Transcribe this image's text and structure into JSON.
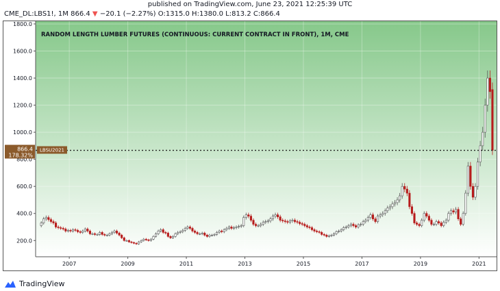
{
  "header": {
    "published": "published on TradingView.com, June 23, 2021 12:25:39 UTC",
    "symbol": "CME_DL:LBS1!, 1M",
    "last": "866.4",
    "change": "−20.1 (−2.27%)",
    "open_label": "O:",
    "open": "1315.0",
    "high_label": "H:",
    "high": "1380.0",
    "low_label": "L:",
    "low": "813.2",
    "close_label": "C:",
    "close": "866.4"
  },
  "footer": {
    "brand": "TradingView"
  },
  "colors": {
    "up": "#555555",
    "down": "#b71c1c",
    "bg_top": "#86c88a",
    "bg_bottom": "#ffffff",
    "label_bg": "#8b5a2b",
    "dotted_line": "#222222"
  },
  "chart_data": {
    "type": "candlestick",
    "title": "RANDOM LENGTH LUMBER FUTURES (CONTINUOUS: CURRENT CONTRACT IN FRONT), 1M, CME",
    "ylim": [
      80,
      1820
    ],
    "y_ticks": [
      200,
      400,
      600,
      800,
      1000,
      1200,
      1400,
      1600,
      1800
    ],
    "y_tick_labels": [
      "200.0",
      "400.0",
      "600.0",
      "800.0",
      "1000.0",
      "1200.0",
      "1400.0",
      "1600.0",
      "1800.0"
    ],
    "xlim": [
      2005.85,
      2021.6
    ],
    "x_ticks": [
      2007,
      2009,
      2011,
      2013,
      2015,
      2017,
      2019,
      2021
    ],
    "x_tick_labels": [
      "2007",
      "2009",
      "2011",
      "2013",
      "2015",
      "2017",
      "2019",
      "2021"
    ],
    "last_price": 866.4,
    "last_price_label": "866.4",
    "last_change_pct_label": "178.32%",
    "symbol_tag": "LBSU2021",
    "months": [
      "2006-01",
      "2006-02",
      "2006-03",
      "2006-04",
      "2006-05",
      "2006-06",
      "2006-07",
      "2006-08",
      "2006-09",
      "2006-10",
      "2006-11",
      "2006-12",
      "2007-01",
      "2007-02",
      "2007-03",
      "2007-04",
      "2007-05",
      "2007-06",
      "2007-07",
      "2007-08",
      "2007-09",
      "2007-10",
      "2007-11",
      "2007-12",
      "2008-01",
      "2008-02",
      "2008-03",
      "2008-04",
      "2008-05",
      "2008-06",
      "2008-07",
      "2008-08",
      "2008-09",
      "2008-10",
      "2008-11",
      "2008-12",
      "2009-01",
      "2009-02",
      "2009-03",
      "2009-04",
      "2009-05",
      "2009-06",
      "2009-07",
      "2009-08",
      "2009-09",
      "2009-10",
      "2009-11",
      "2009-12",
      "2010-01",
      "2010-02",
      "2010-03",
      "2010-04",
      "2010-05",
      "2010-06",
      "2010-07",
      "2010-08",
      "2010-09",
      "2010-10",
      "2010-11",
      "2010-12",
      "2011-01",
      "2011-02",
      "2011-03",
      "2011-04",
      "2011-05",
      "2011-06",
      "2011-07",
      "2011-08",
      "2011-09",
      "2011-10",
      "2011-11",
      "2011-12",
      "2012-01",
      "2012-02",
      "2012-03",
      "2012-04",
      "2012-05",
      "2012-06",
      "2012-07",
      "2012-08",
      "2012-09",
      "2012-10",
      "2012-11",
      "2012-12",
      "2013-01",
      "2013-02",
      "2013-03",
      "2013-04",
      "2013-05",
      "2013-06",
      "2013-07",
      "2013-08",
      "2013-09",
      "2013-10",
      "2013-11",
      "2013-12",
      "2014-01",
      "2014-02",
      "2014-03",
      "2014-04",
      "2014-05",
      "2014-06",
      "2014-07",
      "2014-08",
      "2014-09",
      "2014-10",
      "2014-11",
      "2014-12",
      "2015-01",
      "2015-02",
      "2015-03",
      "2015-04",
      "2015-05",
      "2015-06",
      "2015-07",
      "2015-08",
      "2015-09",
      "2015-10",
      "2015-11",
      "2015-12",
      "2016-01",
      "2016-02",
      "2016-03",
      "2016-04",
      "2016-05",
      "2016-06",
      "2016-07",
      "2016-08",
      "2016-09",
      "2016-10",
      "2016-11",
      "2016-12",
      "2017-01",
      "2017-02",
      "2017-03",
      "2017-04",
      "2017-05",
      "2017-06",
      "2017-07",
      "2017-08",
      "2017-09",
      "2017-10",
      "2017-11",
      "2017-12",
      "2018-01",
      "2018-02",
      "2018-03",
      "2018-04",
      "2018-05",
      "2018-06",
      "2018-07",
      "2018-08",
      "2018-09",
      "2018-10",
      "2018-11",
      "2018-12",
      "2019-01",
      "2019-02",
      "2019-03",
      "2019-04",
      "2019-05",
      "2019-06",
      "2019-07",
      "2019-08",
      "2019-09",
      "2019-10",
      "2019-11",
      "2019-12",
      "2020-01",
      "2020-02",
      "2020-03",
      "2020-04",
      "2020-05",
      "2020-06",
      "2020-07",
      "2020-08",
      "2020-09",
      "2020-10",
      "2020-11",
      "2020-12",
      "2021-01",
      "2021-02",
      "2021-03",
      "2021-04",
      "2021-05",
      "2021-06"
    ],
    "close": [
      330,
      360,
      370,
      355,
      340,
      330,
      300,
      295,
      290,
      285,
      270,
      275,
      270,
      280,
      275,
      265,
      260,
      270,
      285,
      270,
      250,
      250,
      245,
      245,
      260,
      245,
      240,
      240,
      250,
      260,
      270,
      255,
      240,
      220,
      200,
      200,
      190,
      185,
      180,
      175,
      190,
      200,
      210,
      205,
      200,
      210,
      230,
      250,
      270,
      280,
      260,
      255,
      230,
      220,
      230,
      250,
      260,
      265,
      275,
      290,
      300,
      290,
      270,
      260,
      250,
      250,
      255,
      240,
      230,
      240,
      240,
      245,
      260,
      270,
      265,
      280,
      290,
      300,
      290,
      295,
      300,
      305,
      310,
      370,
      390,
      380,
      350,
      320,
      310,
      310,
      320,
      335,
      340,
      345,
      360,
      380,
      390,
      375,
      350,
      345,
      340,
      335,
      345,
      350,
      340,
      335,
      325,
      320,
      310,
      300,
      295,
      280,
      270,
      265,
      260,
      245,
      240,
      230,
      235,
      240,
      250,
      265,
      270,
      280,
      295,
      300,
      310,
      320,
      310,
      300,
      315,
      320,
      340,
      350,
      370,
      390,
      360,
      340,
      380,
      390,
      400,
      420,
      440,
      450,
      470,
      480,
      500,
      530,
      600,
      580,
      550,
      450,
      400,
      330,
      320,
      310,
      350,
      400,
      380,
      350,
      320,
      320,
      340,
      330,
      310,
      335,
      350,
      400,
      420,
      410,
      430,
      360,
      320,
      400,
      550,
      750,
      600,
      520,
      600,
      780,
      900,
      1000,
      1200,
      1400,
      1300,
      866.4
    ],
    "open": [
      310,
      330,
      360,
      370,
      355,
      340,
      330,
      300,
      295,
      290,
      285,
      270,
      275,
      270,
      280,
      275,
      265,
      260,
      270,
      285,
      270,
      250,
      250,
      245,
      245,
      260,
      245,
      240,
      240,
      250,
      260,
      270,
      255,
      240,
      220,
      200,
      200,
      190,
      185,
      180,
      175,
      190,
      200,
      210,
      205,
      200,
      210,
      230,
      250,
      270,
      280,
      260,
      255,
      230,
      220,
      230,
      250,
      260,
      265,
      275,
      290,
      300,
      290,
      270,
      260,
      250,
      250,
      255,
      240,
      230,
      240,
      240,
      245,
      260,
      270,
      265,
      280,
      290,
      300,
      290,
      295,
      300,
      305,
      310,
      370,
      390,
      380,
      350,
      320,
      310,
      310,
      320,
      335,
      340,
      345,
      360,
      380,
      390,
      375,
      350,
      345,
      340,
      335,
      345,
      350,
      340,
      335,
      325,
      320,
      310,
      300,
      295,
      280,
      270,
      265,
      260,
      245,
      240,
      230,
      235,
      240,
      250,
      265,
      270,
      280,
      295,
      300,
      310,
      320,
      310,
      300,
      315,
      320,
      340,
      350,
      370,
      390,
      360,
      340,
      380,
      390,
      400,
      420,
      440,
      450,
      470,
      480,
      500,
      530,
      600,
      580,
      550,
      450,
      400,
      330,
      320,
      310,
      350,
      400,
      380,
      350,
      320,
      320,
      340,
      330,
      310,
      335,
      350,
      400,
      420,
      410,
      430,
      360,
      320,
      400,
      550,
      750,
      600,
      520,
      600,
      780,
      900,
      1000,
      1200,
      1400,
      1315
    ]
  }
}
